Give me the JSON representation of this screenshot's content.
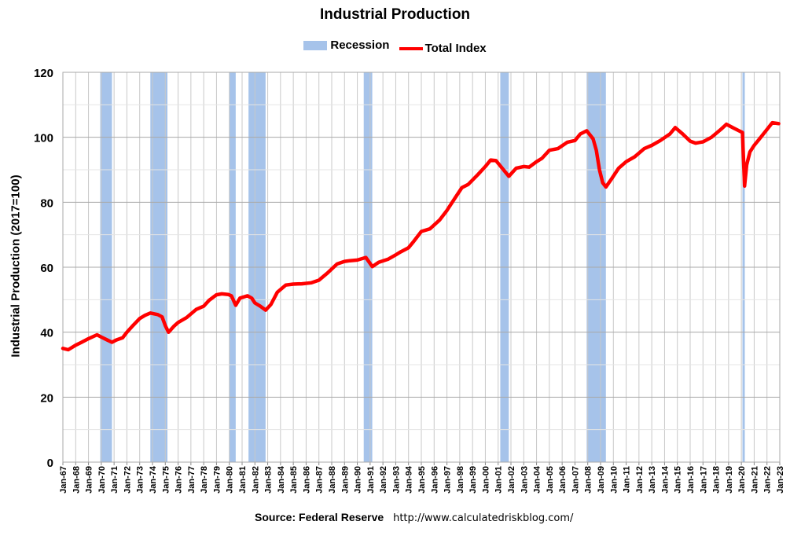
{
  "chart_data": {
    "type": "line",
    "title": "Industrial Production",
    "ylabel": "Industrial Production (2017=100)",
    "ylim": [
      0,
      120
    ],
    "yticks": [
      0,
      20,
      40,
      60,
      80,
      100,
      120
    ],
    "xlim": [
      "1967-01",
      "2023-01"
    ],
    "xtick_labels": [
      "Jan-67",
      "Jan-68",
      "Jan-69",
      "Jan-70",
      "Jan-71",
      "Jan-72",
      "Jan-73",
      "Jan-74",
      "Jan-75",
      "Jan-76",
      "Jan-77",
      "Jan-78",
      "Jan-79",
      "Jan-80",
      "Jan-81",
      "Jan-82",
      "Jan-83",
      "Jan-84",
      "Jan-85",
      "Jan-86",
      "Jan-87",
      "Jan-88",
      "Jan-89",
      "Jan-90",
      "Jan-91",
      "Jan-92",
      "Jan-93",
      "Jan-94",
      "Jan-95",
      "Jan-96",
      "Jan-97",
      "Jan-98",
      "Jan-99",
      "Jan-00",
      "Jan-01",
      "Jan-02",
      "Jan-03",
      "Jan-04",
      "Jan-05",
      "Jan-06",
      "Jan-07",
      "Jan-08",
      "Jan-09",
      "Jan-10",
      "Jan-11",
      "Jan-12",
      "Jan-13",
      "Jan-14",
      "Jan-15",
      "Jan-16",
      "Jan-17",
      "Jan-18",
      "Jan-19",
      "Jan-20",
      "Jan-21",
      "Jan-22",
      "Jan-23"
    ],
    "grid": true,
    "legend_position": "top-center",
    "colors": {
      "recession": "#a6c3ea",
      "line": "#ff0000",
      "grid": "#c8c8c8"
    },
    "legend": [
      {
        "name": "Recession",
        "kind": "band"
      },
      {
        "name": "Total Index",
        "kind": "line"
      }
    ],
    "recessions": [
      {
        "start": "1969-12",
        "end": "1970-11"
      },
      {
        "start": "1973-11",
        "end": "1975-03"
      },
      {
        "start": "1980-01",
        "end": "1980-07"
      },
      {
        "start": "1981-07",
        "end": "1982-11"
      },
      {
        "start": "1990-07",
        "end": "1991-03"
      },
      {
        "start": "2001-03",
        "end": "2001-11"
      },
      {
        "start": "2007-12",
        "end": "2009-06"
      },
      {
        "start": "2020-02",
        "end": "2020-04"
      }
    ],
    "series": [
      {
        "name": "Total Index",
        "points": [
          [
            "1967-01",
            35.0
          ],
          [
            "1967-06",
            34.6
          ],
          [
            "1968-01",
            36.0
          ],
          [
            "1968-06",
            36.8
          ],
          [
            "1969-01",
            38.0
          ],
          [
            "1969-09",
            39.2
          ],
          [
            "1970-01",
            38.5
          ],
          [
            "1970-06",
            37.7
          ],
          [
            "1970-11",
            36.9
          ],
          [
            "1971-03",
            37.6
          ],
          [
            "1971-09",
            38.3
          ],
          [
            "1972-01",
            40.0
          ],
          [
            "1972-06",
            41.8
          ],
          [
            "1973-01",
            44.2
          ],
          [
            "1973-06",
            45.2
          ],
          [
            "1973-11",
            45.9
          ],
          [
            "1974-06",
            45.4
          ],
          [
            "1974-10",
            44.7
          ],
          [
            "1975-01",
            42.0
          ],
          [
            "1975-04",
            40.0
          ],
          [
            "1975-09",
            41.8
          ],
          [
            "1976-01",
            43.0
          ],
          [
            "1976-09",
            44.5
          ],
          [
            "1977-06",
            47.0
          ],
          [
            "1978-01",
            48.0
          ],
          [
            "1978-06",
            49.8
          ],
          [
            "1979-01",
            51.5
          ],
          [
            "1979-06",
            51.8
          ],
          [
            "1979-12",
            51.6
          ],
          [
            "1980-03",
            51.2
          ],
          [
            "1980-07",
            48.3
          ],
          [
            "1980-11",
            50.5
          ],
          [
            "1981-06",
            51.2
          ],
          [
            "1981-10",
            50.5
          ],
          [
            "1982-01",
            49.0
          ],
          [
            "1982-06",
            48.0
          ],
          [
            "1982-11",
            46.8
          ],
          [
            "1983-04",
            48.5
          ],
          [
            "1983-10",
            52.3
          ],
          [
            "1984-06",
            54.5
          ],
          [
            "1985-01",
            54.8
          ],
          [
            "1985-09",
            54.9
          ],
          [
            "1986-06",
            55.2
          ],
          [
            "1987-01",
            56.0
          ],
          [
            "1987-09",
            58.2
          ],
          [
            "1988-06",
            61.0
          ],
          [
            "1989-01",
            61.8
          ],
          [
            "1989-06",
            62.0
          ],
          [
            "1990-01",
            62.2
          ],
          [
            "1990-09",
            63.0
          ],
          [
            "1991-03",
            60.2
          ],
          [
            "1991-09",
            61.5
          ],
          [
            "1992-06",
            62.5
          ],
          [
            "1993-01",
            63.8
          ],
          [
            "1993-06",
            64.8
          ],
          [
            "1994-01",
            66.0
          ],
          [
            "1994-06",
            68.0
          ],
          [
            "1995-01",
            71.0
          ],
          [
            "1995-09",
            71.8
          ],
          [
            "1996-06",
            74.5
          ],
          [
            "1997-01",
            77.5
          ],
          [
            "1997-09",
            81.5
          ],
          [
            "1998-03",
            84.5
          ],
          [
            "1998-09",
            85.5
          ],
          [
            "1999-06",
            88.5
          ],
          [
            "2000-01",
            91.0
          ],
          [
            "2000-06",
            93.0
          ],
          [
            "2000-11",
            92.8
          ],
          [
            "2001-06",
            90.0
          ],
          [
            "2001-11",
            88.0
          ],
          [
            "2002-06",
            90.5
          ],
          [
            "2003-01",
            91.0
          ],
          [
            "2003-06",
            90.8
          ],
          [
            "2004-01",
            92.5
          ],
          [
            "2004-06",
            93.5
          ],
          [
            "2005-01",
            96.0
          ],
          [
            "2005-09",
            96.5
          ],
          [
            "2006-06",
            98.5
          ],
          [
            "2007-01",
            99.0
          ],
          [
            "2007-06",
            101.0
          ],
          [
            "2007-12",
            102.0
          ],
          [
            "2008-06",
            99.5
          ],
          [
            "2008-09",
            96.0
          ],
          [
            "2008-12",
            90.0
          ],
          [
            "2009-03",
            86.0
          ],
          [
            "2009-06",
            84.7
          ],
          [
            "2009-12",
            87.5
          ],
          [
            "2010-06",
            90.5
          ],
          [
            "2011-01",
            92.5
          ],
          [
            "2011-09",
            94.0
          ],
          [
            "2012-06",
            96.5
          ],
          [
            "2013-01",
            97.5
          ],
          [
            "2013-09",
            99.0
          ],
          [
            "2014-06",
            101.0
          ],
          [
            "2014-11",
            103.0
          ],
          [
            "2015-06",
            101.0
          ],
          [
            "2016-01",
            98.8
          ],
          [
            "2016-06",
            98.2
          ],
          [
            "2017-01",
            98.6
          ],
          [
            "2017-09",
            100.0
          ],
          [
            "2018-06",
            102.5
          ],
          [
            "2018-11",
            104.0
          ],
          [
            "2019-06",
            102.8
          ],
          [
            "2019-12",
            101.8
          ],
          [
            "2020-02",
            101.5
          ],
          [
            "2020-04",
            85.0
          ],
          [
            "2020-06",
            91.5
          ],
          [
            "2020-09",
            95.5
          ],
          [
            "2021-01",
            97.5
          ],
          [
            "2021-06",
            99.5
          ],
          [
            "2021-12",
            102.0
          ],
          [
            "2022-06",
            104.5
          ],
          [
            "2022-12",
            104.2
          ]
        ]
      }
    ]
  },
  "footer": {
    "source_label": "Source: Federal Reserve",
    "source_url": "http://www.calculatedriskblog.com/"
  }
}
